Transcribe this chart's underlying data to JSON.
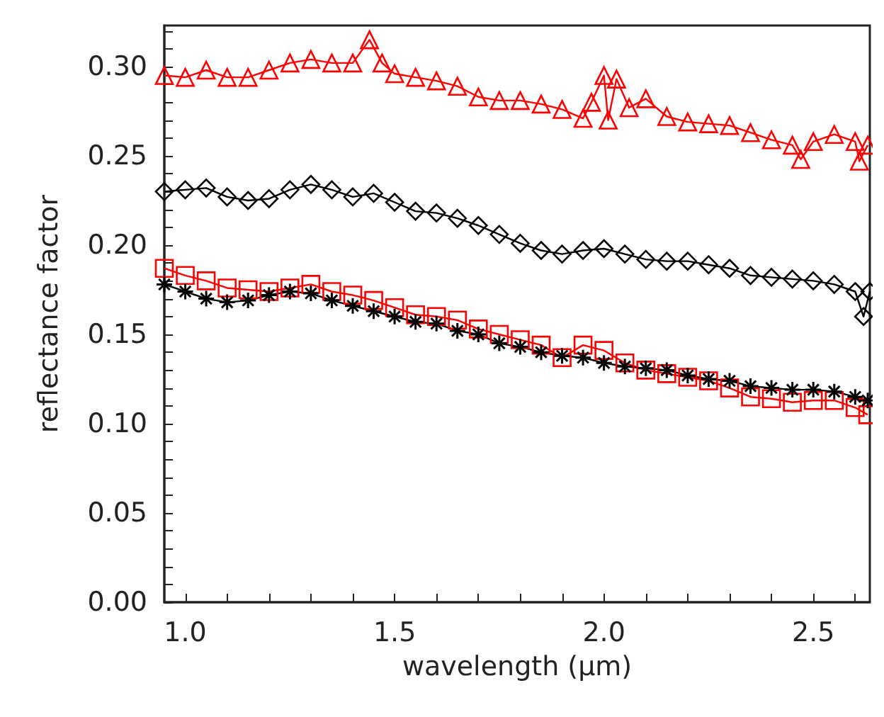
{
  "chart_data": {
    "type": "line",
    "xlabel": "wavelength (μm)",
    "ylabel": "reflectance factor",
    "xlim": [
      0.95,
      2.635
    ],
    "ylim": [
      0,
      0.323
    ],
    "xticks": [
      {
        "value": 1,
        "label": "1.0"
      },
      {
        "value": 1.1,
        "label": null
      },
      {
        "value": 1.2,
        "label": null
      },
      {
        "value": 1.3,
        "label": null
      },
      {
        "value": 1.4,
        "label": null
      },
      {
        "value": 1.5,
        "label": "1.5"
      },
      {
        "value": 1.6,
        "label": null
      },
      {
        "value": 1.7,
        "label": null
      },
      {
        "value": 1.8,
        "label": null
      },
      {
        "value": 1.9,
        "label": null
      },
      {
        "value": 2,
        "label": "2.0"
      },
      {
        "value": 2.1,
        "label": null
      },
      {
        "value": 2.2,
        "label": null
      },
      {
        "value": 2.3,
        "label": null
      },
      {
        "value": 2.4,
        "label": null
      },
      {
        "value": 2.5,
        "label": "2.5"
      },
      {
        "value": 2.6,
        "label": null
      }
    ],
    "yticks": [
      {
        "value": 0,
        "label": "0.00"
      },
      {
        "value": 0.01,
        "label": null
      },
      {
        "value": 0.02,
        "label": null
      },
      {
        "value": 0.03,
        "label": null
      },
      {
        "value": 0.04,
        "label": null
      },
      {
        "value": 0.05,
        "label": "0.05"
      },
      {
        "value": 0.06,
        "label": null
      },
      {
        "value": 0.07,
        "label": null
      },
      {
        "value": 0.08,
        "label": null
      },
      {
        "value": 0.09,
        "label": null
      },
      {
        "value": 0.1,
        "label": "0.10"
      },
      {
        "value": 0.11,
        "label": null
      },
      {
        "value": 0.12,
        "label": null
      },
      {
        "value": 0.13,
        "label": null
      },
      {
        "value": 0.14,
        "label": null
      },
      {
        "value": 0.15,
        "label": "0.15"
      },
      {
        "value": 0.16,
        "label": null
      },
      {
        "value": 0.17,
        "label": null
      },
      {
        "value": 0.18,
        "label": null
      },
      {
        "value": 0.19,
        "label": null
      },
      {
        "value": 0.2,
        "label": "0.20"
      },
      {
        "value": 0.21,
        "label": null
      },
      {
        "value": 0.22,
        "label": null
      },
      {
        "value": 0.23,
        "label": null
      },
      {
        "value": 0.24,
        "label": null
      },
      {
        "value": 0.25,
        "label": "0.25"
      },
      {
        "value": 0.26,
        "label": null
      },
      {
        "value": 0.27,
        "label": null
      },
      {
        "value": 0.28,
        "label": null
      },
      {
        "value": 0.29,
        "label": null
      },
      {
        "value": 0.3,
        "label": "0.30"
      },
      {
        "value": 0.31,
        "label": null
      },
      {
        "value": 0.32,
        "label": null
      }
    ],
    "grid": false,
    "line_style": "solid",
    "series": [
      {
        "color": "#ff0000",
        "marker": "triangle",
        "x": [
          0.95,
          1.0,
          1.05,
          1.1,
          1.15,
          1.2,
          1.25,
          1.3,
          1.35,
          1.4,
          1.44,
          1.47,
          1.5,
          1.55,
          1.6,
          1.65,
          1.7,
          1.75,
          1.8,
          1.85,
          1.9,
          1.95,
          1.97,
          2.0,
          2.01,
          2.03,
          2.06,
          2.1,
          2.15,
          2.2,
          2.25,
          2.3,
          2.35,
          2.4,
          2.45,
          2.47,
          2.5,
          2.55,
          2.6,
          2.61,
          2.63
        ],
        "values": [
          0.295,
          0.294,
          0.298,
          0.294,
          0.294,
          0.298,
          0.302,
          0.304,
          0.302,
          0.302,
          0.315,
          0.302,
          0.296,
          0.294,
          0.292,
          0.289,
          0.283,
          0.281,
          0.281,
          0.279,
          0.276,
          0.271,
          0.28,
          0.295,
          0.27,
          0.293,
          0.277,
          0.282,
          0.272,
          0.269,
          0.268,
          0.267,
          0.263,
          0.259,
          0.256,
          0.248,
          0.258,
          0.262,
          0.258,
          0.247,
          0.256
        ]
      },
      {
        "color": "#000000",
        "marker": "diamond",
        "x": [
          0.95,
          1.0,
          1.05,
          1.1,
          1.15,
          1.2,
          1.25,
          1.3,
          1.35,
          1.4,
          1.45,
          1.5,
          1.55,
          1.6,
          1.65,
          1.7,
          1.75,
          1.8,
          1.85,
          1.9,
          1.95,
          2.0,
          2.05,
          2.1,
          2.15,
          2.2,
          2.25,
          2.3,
          2.35,
          2.4,
          2.45,
          2.5,
          2.55,
          2.6,
          2.62,
          2.635
        ],
        "values": [
          0.23,
          0.231,
          0.232,
          0.227,
          0.225,
          0.226,
          0.231,
          0.234,
          0.231,
          0.227,
          0.229,
          0.224,
          0.219,
          0.218,
          0.215,
          0.211,
          0.206,
          0.201,
          0.197,
          0.195,
          0.197,
          0.198,
          0.195,
          0.192,
          0.191,
          0.191,
          0.189,
          0.187,
          0.183,
          0.182,
          0.181,
          0.18,
          0.178,
          0.174,
          0.16,
          0.174
        ]
      },
      {
        "color": "#ff0000",
        "marker": "square",
        "x": [
          0.95,
          1.0,
          1.05,
          1.1,
          1.15,
          1.2,
          1.25,
          1.3,
          1.35,
          1.4,
          1.45,
          1.5,
          1.55,
          1.6,
          1.65,
          1.7,
          1.75,
          1.8,
          1.85,
          1.9,
          1.95,
          2.0,
          2.05,
          2.1,
          2.15,
          2.2,
          2.25,
          2.3,
          2.35,
          2.4,
          2.45,
          2.5,
          2.55,
          2.6,
          2.63
        ],
        "values": [
          0.187,
          0.183,
          0.18,
          0.176,
          0.175,
          0.174,
          0.176,
          0.178,
          0.174,
          0.172,
          0.169,
          0.165,
          0.161,
          0.16,
          0.158,
          0.153,
          0.15,
          0.147,
          0.144,
          0.137,
          0.144,
          0.141,
          0.134,
          0.13,
          0.128,
          0.126,
          0.124,
          0.12,
          0.115,
          0.114,
          0.112,
          0.113,
          0.113,
          0.109,
          0.105
        ]
      },
      {
        "color": "#000000",
        "marker": "cross",
        "x": [
          0.95,
          1.0,
          1.05,
          1.1,
          1.15,
          1.2,
          1.25,
          1.3,
          1.35,
          1.4,
          1.45,
          1.5,
          1.55,
          1.6,
          1.65,
          1.7,
          1.75,
          1.8,
          1.85,
          1.9,
          1.95,
          2.0,
          2.05,
          2.1,
          2.15,
          2.2,
          2.25,
          2.3,
          2.35,
          2.4,
          2.45,
          2.5,
          2.55,
          2.6,
          2.63
        ],
        "values": [
          0.178,
          0.174,
          0.17,
          0.168,
          0.169,
          0.172,
          0.174,
          0.173,
          0.169,
          0.166,
          0.163,
          0.16,
          0.157,
          0.156,
          0.152,
          0.15,
          0.145,
          0.143,
          0.14,
          0.138,
          0.137,
          0.134,
          0.132,
          0.131,
          0.13,
          0.127,
          0.125,
          0.124,
          0.121,
          0.12,
          0.119,
          0.119,
          0.118,
          0.115,
          0.113
        ]
      }
    ]
  }
}
